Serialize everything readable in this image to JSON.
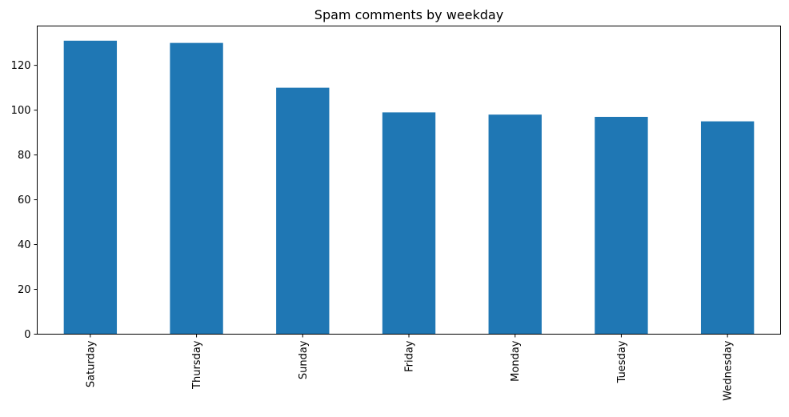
{
  "chart_data": {
    "type": "bar",
    "title": "Spam comments by weekday",
    "xlabel": "",
    "ylabel": "",
    "categories": [
      "Saturday",
      "Thursday",
      "Sunday",
      "Friday",
      "Monday",
      "Tuesday",
      "Wednesday"
    ],
    "values": [
      131,
      130,
      110,
      99,
      98,
      97,
      95
    ],
    "ylim": [
      0,
      137.55
    ],
    "yticks": [
      0,
      20,
      40,
      60,
      80,
      100,
      120
    ],
    "bar_color": "#1f77b4",
    "grid": false,
    "legend": false,
    "x_tick_rotation": "vertical"
  }
}
